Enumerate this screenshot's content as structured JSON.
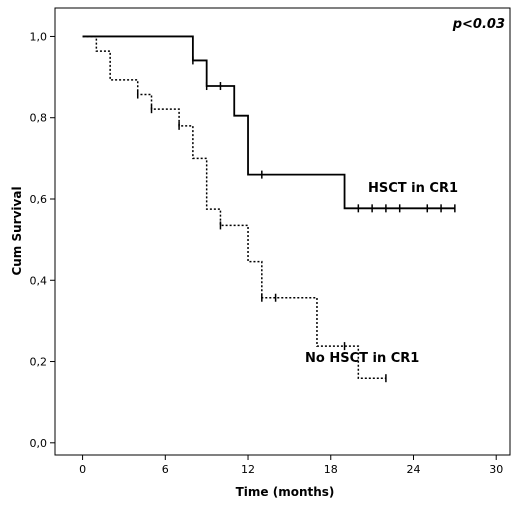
{
  "chart_data": {
    "type": "line",
    "title": "",
    "xlabel": "Time (months)",
    "ylabel": "Cum Survival",
    "xlim": [
      -2,
      31
    ],
    "ylim": [
      -0.03,
      1.07
    ],
    "x_ticks": [
      0,
      6,
      12,
      18,
      24,
      30
    ],
    "y_ticks": [
      0.0,
      0.2,
      0.4,
      0.6,
      0.8,
      1.0
    ],
    "x_tick_labels": [
      "0",
      "6",
      "12",
      "18",
      "24",
      "30"
    ],
    "y_tick_labels": [
      "0,0",
      "0,2",
      "0,4",
      "0,6",
      "0,8",
      "1,0"
    ],
    "grid": false,
    "annotation": "p<0.03",
    "series": [
      {
        "name": "HSCT in CR1",
        "line_style": "solid",
        "steps": [
          [
            0,
            1.0
          ],
          [
            8,
            0.941
          ],
          [
            9,
            0.878
          ],
          [
            11,
            0.805
          ],
          [
            12,
            0.66
          ],
          [
            19,
            0.577
          ],
          [
            27,
            0.577
          ]
        ],
        "censored": [
          [
            8,
            0.941
          ],
          [
            9,
            0.878
          ],
          [
            10,
            0.878
          ],
          [
            13,
            0.66
          ],
          [
            20,
            0.577
          ],
          [
            21,
            0.577
          ],
          [
            22,
            0.577
          ],
          [
            23,
            0.577
          ],
          [
            25,
            0.577
          ],
          [
            26,
            0.577
          ],
          [
            27,
            0.577
          ]
        ]
      },
      {
        "name": "No HSCT in CR1",
        "line_style": "dotted",
        "steps": [
          [
            0,
            1.0
          ],
          [
            1,
            0.964
          ],
          [
            2,
            0.893
          ],
          [
            4,
            0.857
          ],
          [
            5,
            0.821
          ],
          [
            7,
            0.78
          ],
          [
            8,
            0.7
          ],
          [
            9,
            0.575
          ],
          [
            10,
            0.535
          ],
          [
            12,
            0.446
          ],
          [
            13,
            0.357
          ],
          [
            17,
            0.238
          ],
          [
            20,
            0.159
          ],
          [
            22,
            0.159
          ]
        ],
        "censored": [
          [
            4,
            0.857
          ],
          [
            5,
            0.821
          ],
          [
            7,
            0.78
          ],
          [
            10,
            0.535
          ],
          [
            13,
            0.357
          ],
          [
            14,
            0.357
          ],
          [
            19,
            0.238
          ],
          [
            22,
            0.159
          ]
        ]
      }
    ]
  }
}
